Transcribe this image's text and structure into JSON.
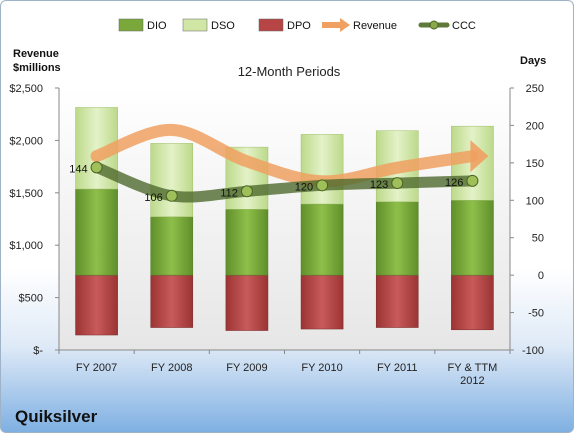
{
  "company": "Quiksilver",
  "legend": [
    {
      "label": "DIO",
      "kind": "bar",
      "color": "#7aa83a"
    },
    {
      "label": "DSO",
      "kind": "bar",
      "color": "#cfe6a4"
    },
    {
      "label": "DPO",
      "kind": "bar",
      "color": "#b84545"
    },
    {
      "label": "Revenue",
      "kind": "arrow",
      "color": "#f0a060"
    },
    {
      "label": "CCC",
      "kind": "line",
      "color": "#5f7a3a"
    }
  ],
  "chart_data": {
    "type": "bar",
    "title": "12-Month Periods",
    "categories": [
      "FY 2007",
      "FY 2008",
      "FY 2009",
      "FY 2010",
      "FY 2011",
      "FY & TTM 2012"
    ],
    "y_left": {
      "label_line1": "Revenue",
      "label_line2": "$millions",
      "ylim": [
        0,
        2500
      ],
      "ticks": [
        0,
        500,
        1000,
        1500,
        2000,
        2500
      ],
      "tick_labels": [
        "$-",
        "$500",
        "$1,000",
        "$1,500",
        "$2,000",
        "$2,500"
      ]
    },
    "y_right": {
      "label": "Days",
      "ylim": [
        -100,
        250
      ],
      "ticks": [
        -100,
        -50,
        0,
        50,
        100,
        150,
        200,
        250
      ],
      "tick_labels": [
        "-100",
        "-50",
        "0",
        "50",
        "100",
        "150",
        "200",
        "250"
      ]
    },
    "series": [
      {
        "name": "DIO",
        "axis": "right",
        "values": [
          115,
          78,
          88,
          95,
          98,
          100
        ]
      },
      {
        "name": "DSO",
        "axis": "right",
        "values": [
          109,
          98,
          83,
          93,
          95,
          99
        ]
      },
      {
        "name": "DPO",
        "axis": "right",
        "values": [
          -80,
          -70,
          -74,
          -72,
          -70,
          -73
        ]
      },
      {
        "name": "Revenue",
        "axis": "left",
        "values": [
          1850,
          2100,
          1800,
          1610,
          1740,
          1850
        ]
      },
      {
        "name": "CCC",
        "axis": "right",
        "values": [
          144,
          106,
          112,
          120,
          123,
          126
        ]
      }
    ],
    "ccc_labels": [
      "144",
      "106",
      "112",
      "120",
      "123",
      "126"
    ],
    "grid": false,
    "legend_position": "top"
  }
}
